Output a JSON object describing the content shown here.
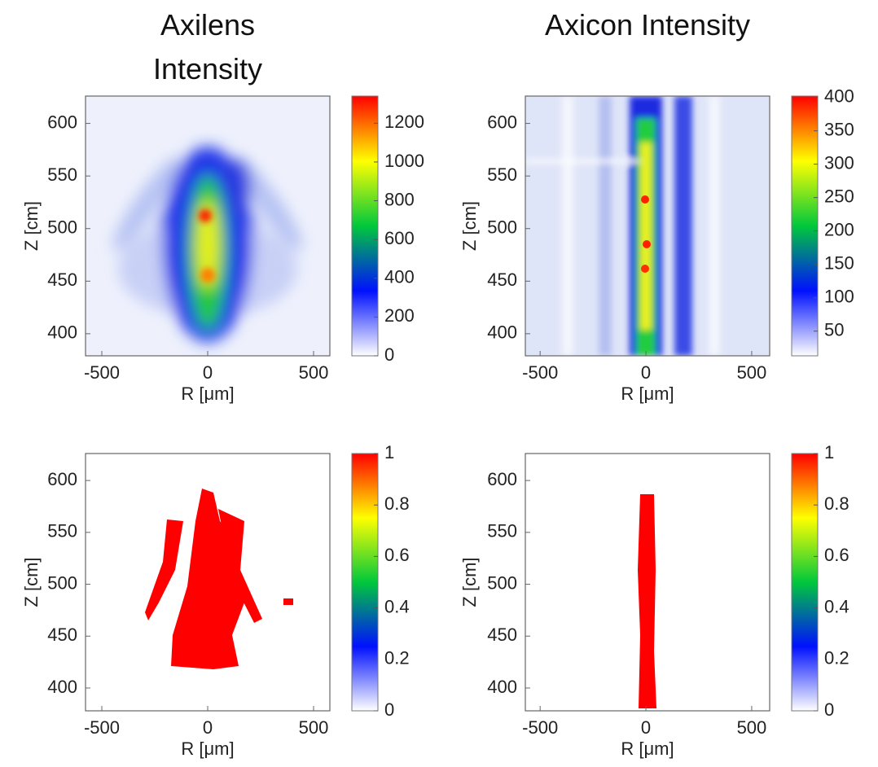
{
  "chart_data": [
    {
      "type": "heatmap",
      "title": "Axilens Intensity",
      "xlabel": "R [μm]",
      "ylabel": "Z [cm]",
      "xlim": [
        -577,
        577
      ],
      "ylim": [
        379,
        626
      ],
      "xticks": [
        -500,
        0,
        500
      ],
      "yticks": [
        400,
        450,
        500,
        550,
        600
      ],
      "colormap": [
        "#ffffff",
        "#0010ff",
        "#00c83c",
        "#ffff00",
        "#ff0000"
      ],
      "colorbar": {
        "lim": [
          0,
          1340
        ],
        "ticks": [
          0,
          200,
          400,
          600,
          800,
          1000,
          1200
        ]
      }
    },
    {
      "type": "heatmap",
      "title": "Axicon Intensity",
      "xlabel": "R [μm]",
      "ylabel": "Z [cm]",
      "xlim": [
        -570,
        585
      ],
      "ylim": [
        379,
        626
      ],
      "xticks": [
        -500,
        0,
        500
      ],
      "yticks": [
        400,
        450,
        500,
        550,
        600
      ],
      "colormap": [
        "#ffffff",
        "#0010ff",
        "#00c83c",
        "#ffff00",
        "#ff0000"
      ],
      "colorbar": {
        "lim": [
          13,
          402
        ],
        "ticks": [
          50,
          100,
          150,
          200,
          250,
          300,
          350,
          400
        ]
      }
    },
    {
      "type": "heatmap",
      "xlabel": "R [μm]",
      "ylabel": "Z [cm]",
      "xlim": [
        -577,
        577
      ],
      "ylim": [
        378,
        626
      ],
      "xticks": [
        -500,
        0,
        500
      ],
      "yticks": [
        400,
        450,
        500,
        550,
        600
      ],
      "colormap": [
        "#ffffff",
        "#0010ff",
        "#00c83c",
        "#ffff00",
        "#ff0000"
      ],
      "colorbar": {
        "lim": [
          0,
          1
        ],
        "ticks": [
          0,
          0.2,
          0.4,
          0.6,
          0.8,
          1
        ]
      }
    },
    {
      "type": "heatmap",
      "xlabel": "R [μm]",
      "ylabel": "Z [cm]",
      "xlim": [
        -570,
        585
      ],
      "ylim": [
        378,
        626
      ],
      "xticks": [
        -500,
        0,
        500
      ],
      "yticks": [
        400,
        450,
        500,
        550,
        600
      ],
      "colormap": [
        "#ffffff",
        "#0010ff",
        "#00c83c",
        "#ffff00",
        "#ff0000"
      ],
      "colorbar": {
        "lim": [
          0,
          1
        ],
        "ticks": [
          0,
          0.2,
          0.4,
          0.6,
          0.8,
          1
        ]
      }
    }
  ]
}
